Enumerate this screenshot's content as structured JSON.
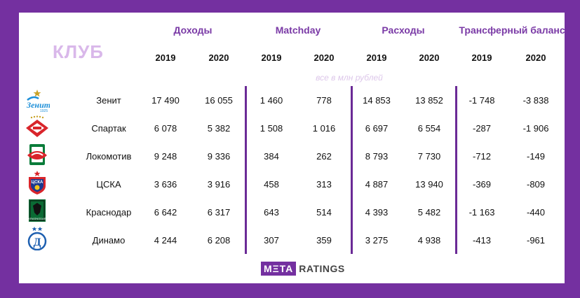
{
  "header": {
    "club_label": "КЛУБ",
    "groups": [
      "Доходы",
      "Matchday",
      "Расходы",
      "Трансферный баланс"
    ],
    "years": [
      "2019",
      "2020",
      "2019",
      "2020",
      "2019",
      "2020",
      "2019",
      "2020"
    ],
    "note": "все в млн рублей"
  },
  "clubs": [
    {
      "name": "Зенит",
      "logo": "zenit-logo",
      "values": [
        "17 490",
        "16 055",
        "1 460",
        "778",
        "14 853",
        "13 852",
        "-1 748",
        "-3 838"
      ]
    },
    {
      "name": "Спартак",
      "logo": "spartak-logo",
      "values": [
        "6 078",
        "5 382",
        "1 508",
        "1 016",
        "6 697",
        "6 554",
        "-287",
        "-1 906"
      ]
    },
    {
      "name": "Локомотив",
      "logo": "lokomotiv-logo",
      "values": [
        "9 248",
        "9 336",
        "384",
        "262",
        "8 793",
        "7 730",
        "-712",
        "-149"
      ]
    },
    {
      "name": "ЦСКА",
      "logo": "cska-logo",
      "values": [
        "3 636",
        "3 916",
        "458",
        "313",
        "4 887",
        "13 940",
        "-369",
        "-809"
      ]
    },
    {
      "name": "Краснодар",
      "logo": "krasnodar-logo",
      "values": [
        "6 642",
        "6 317",
        "643",
        "514",
        "4 393",
        "5 482",
        "-1 163",
        "-440"
      ]
    },
    {
      "name": "Динамо",
      "logo": "dinamo-logo",
      "values": [
        "4 244",
        "6 208",
        "307",
        "359",
        "3 275",
        "4 938",
        "-413",
        "-961"
      ]
    }
  ],
  "brand": {
    "box": "MΞTA",
    "text": "RATINGS"
  },
  "colors": {
    "background": "#7430a0",
    "header_text": "#7a3aa6",
    "club_label": "#d9b8ea",
    "divider": "#6b2a96"
  }
}
